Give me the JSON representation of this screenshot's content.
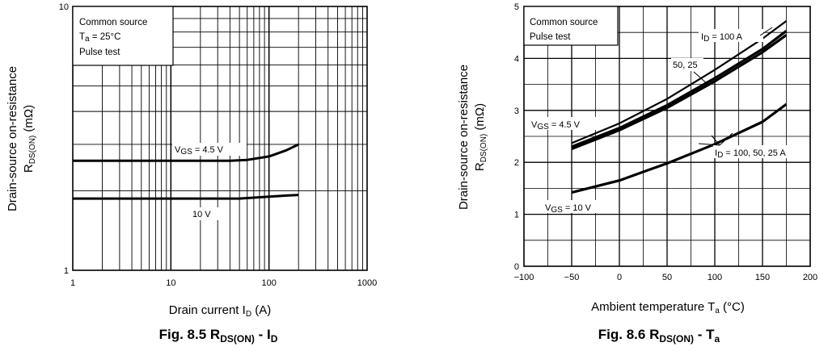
{
  "chart_data": [
    {
      "type": "line",
      "caption": {
        "main": "Fig. 8.5",
        "rds": "R",
        "rds_sub": "DS(ON)",
        "dash": " - I",
        "dash_sub": "D"
      },
      "ylabel": {
        "line1": "Drain-source on-resistance",
        "sym": "R",
        "sym_sub": "DS(ON)",
        "unit": "(mΩ)"
      },
      "xlabel": {
        "text": "Drain current",
        "sym": "I",
        "sym_sub": "D",
        "unit": "(A)"
      },
      "xscale": "log",
      "yscale": "log",
      "xlim": [
        1,
        1000
      ],
      "ylim": [
        1,
        10
      ],
      "x_ticks": [
        "1",
        "10",
        "100",
        "1000"
      ],
      "y_ticks": [
        "1",
        "10"
      ],
      "conditions": [
        "Common source",
        "Ta = 25°C",
        "Pulse test"
      ],
      "series": [
        {
          "label": "VGS = 4.5 V",
          "label_parts": {
            "v": "V",
            "sub": "GS",
            "rest": " = 4.5 V"
          },
          "x": [
            1,
            10,
            40,
            60,
            100,
            150,
            200
          ],
          "y": [
            2.6,
            2.6,
            2.6,
            2.62,
            2.7,
            2.85,
            3.0
          ]
        },
        {
          "label": "10 V",
          "x": [
            1,
            10,
            50,
            100,
            150,
            200
          ],
          "y": [
            1.87,
            1.87,
            1.87,
            1.9,
            1.92,
            1.93
          ]
        }
      ]
    },
    {
      "type": "line",
      "caption": {
        "main": "Fig. 8.6",
        "rds": "R",
        "rds_sub": "DS(ON)",
        "dash": " - T",
        "dash_sub": "a"
      },
      "ylabel": {
        "line1": "Drain-source on-resistance",
        "sym": "R",
        "sym_sub": "DS(ON)",
        "unit": "(mΩ)"
      },
      "xlabel": {
        "text": "Ambient temperature",
        "sym": "T",
        "sym_sub": "a",
        "unit": "(°C)"
      },
      "xlim": [
        -100,
        200
      ],
      "ylim": [
        0,
        5
      ],
      "x_ticks": [
        "−100",
        "−50",
        "0",
        "50",
        "100",
        "150",
        "200"
      ],
      "y_ticks": [
        "0",
        "1",
        "2",
        "3",
        "4",
        "5"
      ],
      "conditions": [
        "Common source",
        "Pulse test"
      ],
      "annotations": {
        "id100": {
          "sym": "I",
          "sub": "D",
          "rest": " = 100 A"
        },
        "fifty": "50, 25",
        "vgs45": {
          "sym": "V",
          "sub": "GS",
          "rest": " = 4.5 V"
        },
        "id_all": {
          "sym": "I",
          "sub": "D",
          "rest": " = 100, 50, 25 A"
        },
        "vgs10": {
          "sym": "V",
          "sub": "GS",
          "rest": " = 10 V"
        }
      },
      "series": [
        {
          "label": "ID = 100 A",
          "x": [
            -50,
            0,
            50,
            100,
            150,
            175
          ],
          "y": [
            2.37,
            2.75,
            3.22,
            3.78,
            4.38,
            4.72
          ]
        },
        {
          "label": "ID = 50 A",
          "x": [
            -50,
            0,
            50,
            100,
            150,
            175
          ],
          "y": [
            2.3,
            2.66,
            3.1,
            3.62,
            4.18,
            4.53
          ]
        },
        {
          "label": "ID = 25 A",
          "x": [
            -50,
            0,
            50,
            100,
            150,
            175
          ],
          "y": [
            2.26,
            2.62,
            3.05,
            3.56,
            4.12,
            4.45
          ]
        },
        {
          "label": "VGS = 10 V",
          "x": [
            -50,
            0,
            30,
            50,
            100,
            150,
            175
          ],
          "y": [
            1.42,
            1.65,
            1.85,
            1.98,
            2.35,
            2.78,
            3.12
          ]
        }
      ]
    }
  ]
}
